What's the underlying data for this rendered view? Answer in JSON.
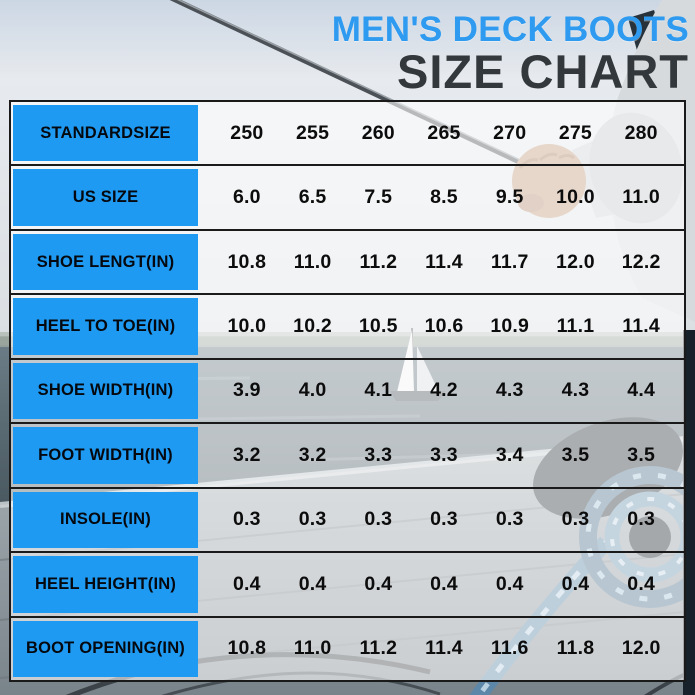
{
  "title": {
    "line1": "MEN'S DECK BOOTS",
    "line2": "SIZE CHART"
  },
  "colors": {
    "accent_blue": "#1E9AF2",
    "title_blue": "#2E9BF0",
    "title_dark": "#33383C",
    "table_line": "#1a1a1a"
  },
  "background": {
    "scene": "man on boat deck holding fishing rod over the sea with distant sailboat and coiled ropes"
  },
  "chart_data": {
    "type": "table",
    "title": "MEN'S DECK BOOTS SIZE CHART",
    "rows": [
      {
        "label": "STANDARDSIZE",
        "values": [
          "250",
          "255",
          "260",
          "265",
          "270",
          "275",
          "280"
        ]
      },
      {
        "label": "US SIZE",
        "values": [
          "6.0",
          "6.5",
          "7.5",
          "8.5",
          "9.5",
          "10.0",
          "11.0"
        ]
      },
      {
        "label": "SHOE LENGT(IN)",
        "values": [
          "10.8",
          "11.0",
          "11.2",
          "11.4",
          "11.7",
          "12.0",
          "12.2"
        ]
      },
      {
        "label": "HEEL TO TOE(IN)",
        "values": [
          "10.0",
          "10.2",
          "10.5",
          "10.6",
          "10.9",
          "11.1",
          "11.4"
        ]
      },
      {
        "label": "SHOE WIDTH(IN)",
        "values": [
          "3.9",
          "4.0",
          "4.1",
          "4.2",
          "4.3",
          "4.3",
          "4.4"
        ]
      },
      {
        "label": "FOOT WIDTH(IN)",
        "values": [
          "3.2",
          "3.2",
          "3.3",
          "3.3",
          "3.4",
          "3.5",
          "3.5"
        ]
      },
      {
        "label": "INSOLE(IN)",
        "values": [
          "0.3",
          "0.3",
          "0.3",
          "0.3",
          "0.3",
          "0.3",
          "0.3"
        ]
      },
      {
        "label": "HEEL HEIGHT(IN)",
        "values": [
          "0.4",
          "0.4",
          "0.4",
          "0.4",
          "0.4",
          "0.4",
          "0.4"
        ]
      },
      {
        "label": "BOOT OPENING(IN)",
        "values": [
          "10.8",
          "11.0",
          "11.2",
          "11.4",
          "11.6",
          "11.8",
          "12.0"
        ]
      }
    ]
  }
}
